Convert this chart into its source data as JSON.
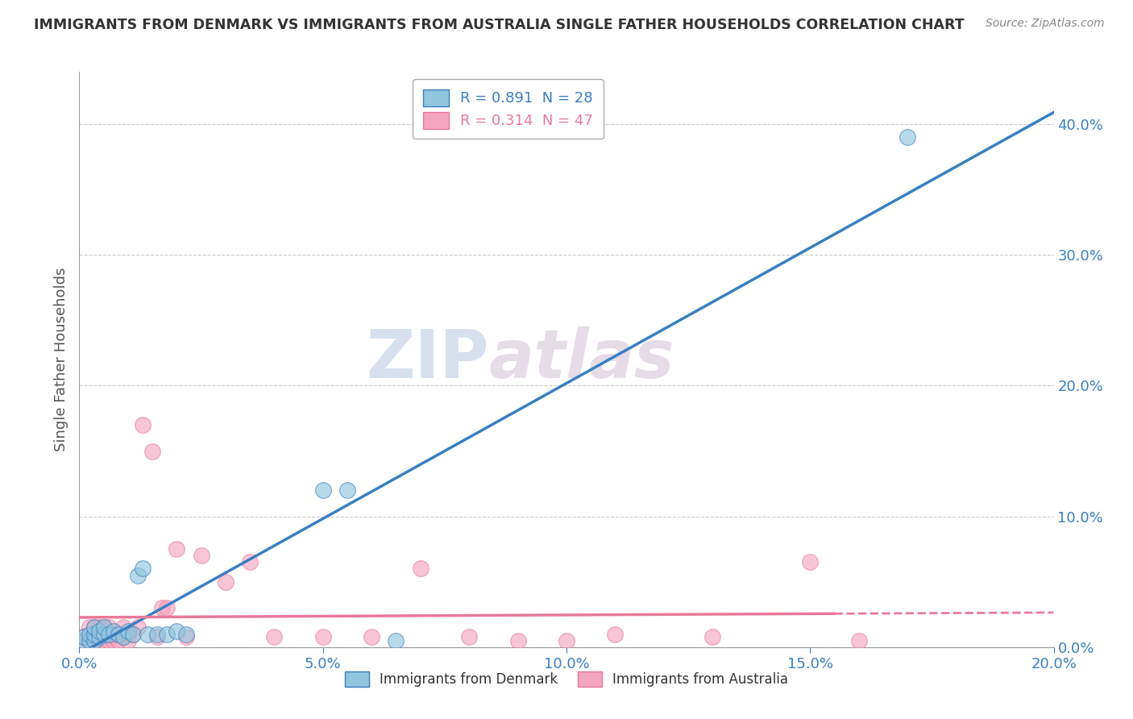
{
  "title": "IMMIGRANTS FROM DENMARK VS IMMIGRANTS FROM AUSTRALIA SINGLE FATHER HOUSEHOLDS CORRELATION CHART",
  "source": "Source: ZipAtlas.com",
  "ylabel": "Single Father Households",
  "legend_denmark": "Immigrants from Denmark",
  "legend_australia": "Immigrants from Australia",
  "r_denmark": 0.891,
  "n_denmark": 28,
  "r_australia": 0.314,
  "n_australia": 47,
  "color_denmark": "#92c5de",
  "color_australia": "#f4a6c0",
  "trend_denmark_color": "#3a7fc1",
  "trend_australia_color": "#e8799a",
  "xlim": [
    0.0,
    0.2
  ],
  "ylim": [
    0.0,
    0.44
  ],
  "xticks": [
    0.0,
    0.05,
    0.1,
    0.15,
    0.2
  ],
  "yticks_right": [
    0.0,
    0.1,
    0.2,
    0.3,
    0.4
  ],
  "background": "#ffffff",
  "watermark_zip": "ZIP",
  "watermark_atlas": "atlas",
  "denmark_x": [
    0.001,
    0.001,
    0.002,
    0.002,
    0.003,
    0.003,
    0.003,
    0.004,
    0.004,
    0.005,
    0.005,
    0.006,
    0.007,
    0.008,
    0.009,
    0.01,
    0.011,
    0.012,
    0.013,
    0.014,
    0.016,
    0.018,
    0.02,
    0.022,
    0.05,
    0.055,
    0.065,
    0.17
  ],
  "denmark_y": [
    0.005,
    0.008,
    0.005,
    0.01,
    0.005,
    0.01,
    0.015,
    0.008,
    0.012,
    0.01,
    0.015,
    0.01,
    0.012,
    0.01,
    0.008,
    0.012,
    0.01,
    0.055,
    0.06,
    0.01,
    0.01,
    0.01,
    0.012,
    0.01,
    0.12,
    0.12,
    0.005,
    0.39
  ],
  "australia_x": [
    0.001,
    0.001,
    0.002,
    0.002,
    0.002,
    0.003,
    0.003,
    0.003,
    0.004,
    0.004,
    0.004,
    0.005,
    0.005,
    0.005,
    0.006,
    0.006,
    0.006,
    0.007,
    0.007,
    0.008,
    0.008,
    0.009,
    0.01,
    0.01,
    0.011,
    0.012,
    0.013,
    0.015,
    0.016,
    0.017,
    0.018,
    0.02,
    0.022,
    0.025,
    0.03,
    0.035,
    0.04,
    0.05,
    0.06,
    0.07,
    0.08,
    0.09,
    0.1,
    0.11,
    0.13,
    0.15,
    0.16
  ],
  "australia_y": [
    0.005,
    0.008,
    0.005,
    0.01,
    0.015,
    0.005,
    0.01,
    0.015,
    0.005,
    0.01,
    0.015,
    0.005,
    0.01,
    0.015,
    0.005,
    0.01,
    0.015,
    0.005,
    0.01,
    0.005,
    0.01,
    0.015,
    0.005,
    0.01,
    0.01,
    0.015,
    0.17,
    0.15,
    0.008,
    0.03,
    0.03,
    0.075,
    0.008,
    0.07,
    0.05,
    0.065,
    0.008,
    0.008,
    0.008,
    0.06,
    0.008,
    0.005,
    0.005,
    0.01,
    0.008,
    0.065,
    0.005
  ]
}
